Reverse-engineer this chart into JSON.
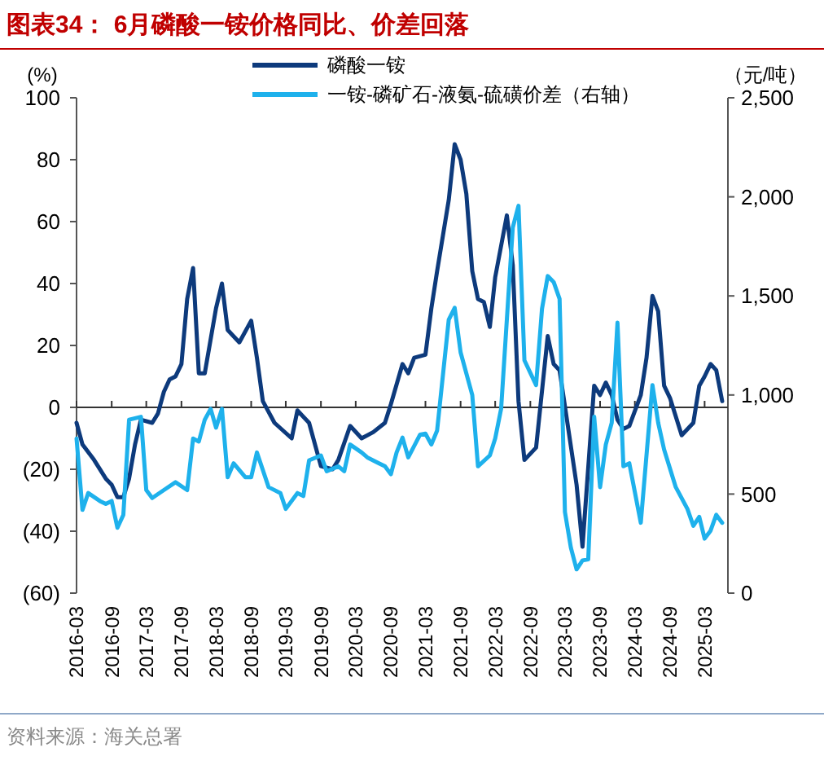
{
  "chart_data": {
    "type": "line",
    "title": "图表34： 6月磷酸一铵价格同比、价差回落",
    "ylabel": "(%)",
    "y2label": "（元/吨）",
    "annotations": [
      "资料来源：海关总署"
    ],
    "legend": "top",
    "ref_lines": [
      {
        "axis": "y",
        "value": 0
      }
    ],
    "marker": "none",
    "line_style": "solid",
    "xlim": [
      "2016-03",
      "2025-07"
    ],
    "xticks": [
      "2016-03",
      "2016-09",
      "2017-03",
      "2017-09",
      "2018-03",
      "2018-09",
      "2019-03",
      "2019-09",
      "2020-03",
      "2020-09",
      "2021-03",
      "2021-09",
      "2022-03",
      "2022-09",
      "2023-03",
      "2023-09",
      "2024-03",
      "2024-09",
      "2025-03"
    ],
    "ylim": [
      -60,
      100
    ],
    "yticks": [
      {
        "value": -60,
        "label": "(60)"
      },
      {
        "value": -40,
        "label": "(40)"
      },
      {
        "value": -20,
        "label": "(20)"
      },
      0,
      20,
      40,
      60,
      80,
      100
    ],
    "y2lim": [
      0,
      2500
    ],
    "y2ticks": [
      0,
      500,
      {
        "value": 1000,
        "label": "1,000"
      },
      {
        "value": 1500,
        "label": "1,500"
      },
      {
        "value": 2000,
        "label": "2,000"
      },
      {
        "value": 2500,
        "label": "2,500"
      }
    ],
    "series": [
      {
        "name": "磷酸一铵",
        "color": "#0d3a7c",
        "x": [
          "2016-03",
          "2016-04",
          "2016-06",
          "2016-08",
          "2016-09",
          "2016-10",
          "2016-11",
          "2016-12",
          "2017-01",
          "2017-02",
          "2017-04",
          "2017-05",
          "2017-06",
          "2017-07",
          "2017-08",
          "2017-09",
          "2017-10",
          "2017-11",
          "2017-12",
          "2018-01",
          "2018-03",
          "2018-04",
          "2018-05",
          "2018-07",
          "2018-09",
          "2018-10",
          "2018-11",
          "2019-01",
          "2019-04",
          "2019-05",
          "2019-07",
          "2019-09",
          "2019-11",
          "2019-12",
          "2020-02",
          "2020-04",
          "2020-06",
          "2020-08",
          "2020-09",
          "2020-11",
          "2020-12",
          "2021-01",
          "2021-03",
          "2021-04",
          "2021-05",
          "2021-07",
          "2021-08",
          "2021-09",
          "2021-10",
          "2021-11",
          "2021-12",
          "2022-01",
          "2022-02",
          "2022-03",
          "2022-05",
          "2022-06",
          "2022-07",
          "2022-08",
          "2022-10",
          "2022-12",
          "2023-01",
          "2023-02",
          "2023-05",
          "2023-06",
          "2023-08",
          "2023-09",
          "2023-10",
          "2023-11",
          "2023-12",
          "2024-01",
          "2024-02",
          "2024-04",
          "2024-05",
          "2024-06",
          "2024-07",
          "2024-08",
          "2024-09",
          "2024-11",
          "2025-01",
          "2025-02",
          "2025-03",
          "2025-04",
          "2025-05",
          "2025-06"
        ],
        "values": [
          -5,
          -12,
          -17,
          -23,
          -25,
          -29,
          -29,
          -23,
          -12,
          -4,
          -5,
          -2,
          5,
          9,
          10,
          14,
          35,
          45,
          11,
          11,
          32,
          40,
          25,
          21,
          28,
          16,
          2,
          -5,
          -10,
          -1,
          -5,
          -19,
          -20,
          -17,
          -6,
          -10,
          -8,
          -5,
          1,
          14,
          11,
          16,
          17,
          32,
          44,
          67,
          85,
          80,
          69,
          44,
          35,
          34,
          26,
          42,
          62,
          46,
          2,
          -17,
          -13,
          23,
          14,
          12,
          -25,
          -45,
          7,
          4,
          8,
          4,
          -4,
          -7,
          -6,
          4,
          16,
          36,
          31,
          7,
          3,
          -9,
          -5,
          7,
          10,
          14,
          12,
          2
        ]
      },
      {
        "name": "一铵-磷矿石-液氨-硫磺价差（右轴）",
        "color": "#1eb1ec",
        "axis": "y2",
        "x": [
          "2016-03",
          "2016-04",
          "2016-05",
          "2016-07",
          "2016-08",
          "2016-09",
          "2016-10",
          "2016-11",
          "2016-12",
          "2017-02",
          "2017-03",
          "2017-04",
          "2017-06",
          "2017-08",
          "2017-10",
          "2017-11",
          "2017-12",
          "2018-01",
          "2018-02",
          "2018-03",
          "2018-04",
          "2018-05",
          "2018-06",
          "2018-08",
          "2018-09",
          "2018-10",
          "2018-12",
          "2019-02",
          "2019-03",
          "2019-05",
          "2019-06",
          "2019-07",
          "2019-09",
          "2019-10",
          "2019-12",
          "2020-01",
          "2020-02",
          "2020-04",
          "2020-05",
          "2020-07",
          "2020-08",
          "2020-09",
          "2020-10",
          "2020-11",
          "2020-12",
          "2021-02",
          "2021-03",
          "2021-04",
          "2021-05",
          "2021-07",
          "2021-08",
          "2021-09",
          "2021-11",
          "2021-12",
          "2022-02",
          "2022-03",
          "2022-04",
          "2022-06",
          "2022-07",
          "2022-08",
          "2022-10",
          "2022-11",
          "2022-12",
          "2023-01",
          "2023-02",
          "2023-03",
          "2023-04",
          "2023-05",
          "2023-06",
          "2023-07",
          "2023-08",
          "2023-09",
          "2023-10",
          "2023-11",
          "2023-12",
          "2024-01",
          "2024-02",
          "2024-04",
          "2024-06",
          "2024-07",
          "2024-08",
          "2024-10",
          "2024-12",
          "2025-01",
          "2025-02",
          "2025-03",
          "2025-04",
          "2025-05",
          "2025-06"
        ],
        "values": [
          780,
          420,
          505,
          465,
          450,
          465,
          330,
          395,
          875,
          890,
          520,
          480,
          520,
          560,
          520,
          780,
          765,
          875,
          930,
          835,
          930,
          585,
          655,
          585,
          585,
          710,
          535,
          505,
          425,
          505,
          490,
          670,
          695,
          615,
          640,
          615,
          750,
          710,
          685,
          655,
          640,
          600,
          710,
          785,
          685,
          800,
          805,
          750,
          820,
          1380,
          1440,
          1215,
          1000,
          640,
          695,
          780,
          930,
          1845,
          1955,
          1175,
          1050,
          1435,
          1600,
          1570,
          1485,
          410,
          230,
          120,
          165,
          170,
          890,
          535,
          750,
          860,
          1365,
          640,
          655,
          355,
          1050,
          860,
          725,
          535,
          425,
          340,
          385,
          275,
          315,
          395,
          355
        ]
      }
    ]
  }
}
